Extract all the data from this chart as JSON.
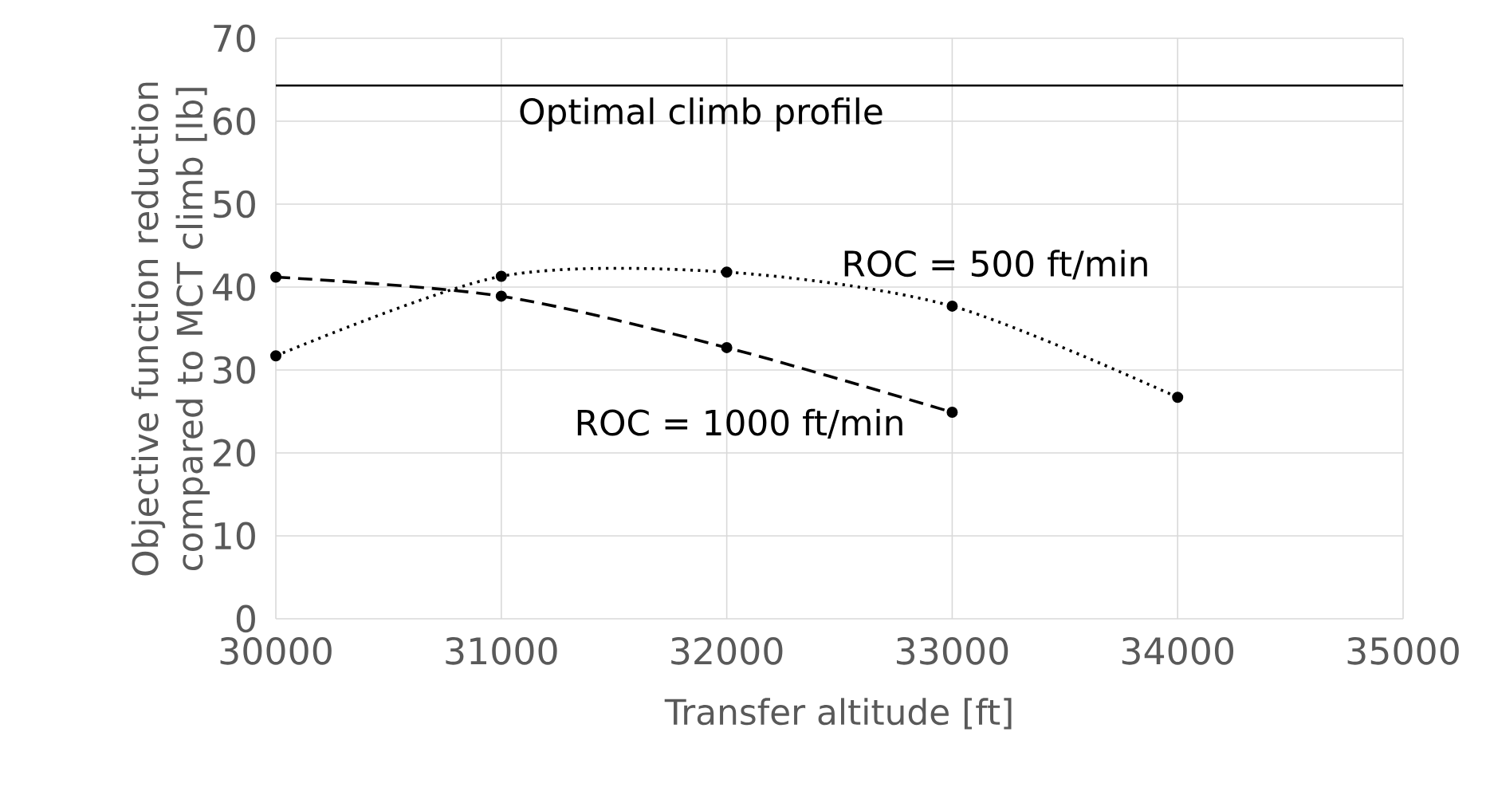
{
  "chart_data": {
    "type": "line",
    "xlabel": "Transfer altitude [ft]",
    "ylabel": "Objective function reduction compared to MCT climb [lb]",
    "xlim": [
      30000,
      35000
    ],
    "xticks": [
      30000,
      31000,
      32000,
      33000,
      34000,
      35000
    ],
    "ylim": [
      0,
      70
    ],
    "yticks": [
      0,
      10,
      20,
      30,
      40,
      50,
      60,
      70
    ],
    "grid": true,
    "marker": "circle",
    "series": [
      {
        "name": "ROC = 1000 ft/min",
        "color": "#000000",
        "line_style": "dashed",
        "x": [
          30000,
          31000,
          32000,
          33000
        ],
        "values": [
          41.2,
          38.9,
          32.7,
          24.9
        ]
      },
      {
        "name": "ROC = 500 ft/min",
        "color": "#000000",
        "line_style": "dotted",
        "x": [
          30000,
          31000,
          32000,
          33000,
          34000
        ],
        "values": [
          31.7,
          41.3,
          41.8,
          37.7,
          26.7
        ]
      }
    ],
    "ref_lines": [
      {
        "axis": "y",
        "value": 64.3,
        "label": "Optimal climb profile",
        "color": "#000000",
        "line_style": "solid"
      }
    ]
  }
}
